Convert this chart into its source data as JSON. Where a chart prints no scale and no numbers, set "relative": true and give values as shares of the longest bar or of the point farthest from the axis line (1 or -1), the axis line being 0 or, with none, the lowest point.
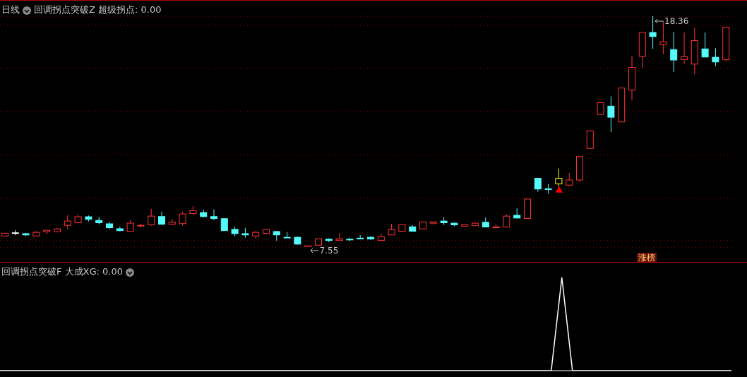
{
  "chart_data": [
    {
      "type": "candlestick",
      "title": "日线",
      "subtitle": "回调拐点突破Z 超级拐点: 0.00",
      "categories": [
        null,
        null,
        null,
        null,
        null,
        null,
        null,
        null,
        null,
        null,
        null,
        null,
        null,
        null,
        null,
        null,
        null,
        null,
        null,
        null,
        null,
        null,
        null,
        null,
        null,
        null,
        null,
        null,
        null,
        null,
        null,
        null,
        null,
        null,
        null,
        null,
        null,
        null,
        null,
        null,
        null,
        null,
        null,
        null,
        null,
        null,
        null,
        null,
        null,
        null,
        null,
        null,
        null,
        null,
        null,
        null,
        null,
        null,
        null,
        null,
        null,
        null,
        null,
        null,
        null,
        null,
        null,
        null,
        null,
        null
      ],
      "ohlc": [
        [
          8.07,
          8.2,
          8.07,
          8.2
        ],
        [
          8.22,
          8.34,
          8.11,
          8.22
        ],
        [
          8.18,
          8.21,
          8.06,
          8.12
        ],
        [
          8.07,
          8.3,
          8.07,
          8.24
        ],
        [
          8.27,
          8.34,
          8.16,
          8.34
        ],
        [
          8.27,
          8.45,
          8.27,
          8.4
        ],
        [
          8.57,
          9.04,
          8.39,
          8.77
        ],
        [
          8.69,
          9.07,
          8.65,
          8.97
        ],
        [
          8.97,
          9.03,
          8.75,
          8.85
        ],
        [
          8.8,
          8.97,
          8.62,
          8.69
        ],
        [
          8.64,
          8.73,
          8.39,
          8.46
        ],
        [
          8.41,
          8.5,
          8.29,
          8.32
        ],
        [
          8.29,
          8.81,
          8.29,
          8.67
        ],
        [
          8.56,
          8.64,
          8.46,
          8.57
        ],
        [
          8.59,
          9.34,
          8.55,
          9.0
        ],
        [
          8.98,
          9.21,
          8.59,
          8.62
        ],
        [
          8.62,
          8.87,
          8.62,
          8.71
        ],
        [
          8.65,
          9.21,
          8.55,
          9.1
        ],
        [
          9.12,
          9.47,
          9.05,
          9.26
        ],
        [
          9.17,
          9.31,
          8.95,
          8.98
        ],
        [
          8.98,
          9.31,
          8.81,
          8.89
        ],
        [
          8.88,
          8.91,
          8.32,
          8.32
        ],
        [
          8.38,
          8.51,
          8.05,
          8.18
        ],
        [
          8.18,
          8.45,
          7.99,
          8.12
        ],
        [
          8.07,
          8.31,
          7.94,
          8.24
        ],
        [
          8.19,
          8.37,
          8.15,
          8.37
        ],
        [
          8.28,
          8.31,
          7.85,
          8.12
        ],
        [
          8.01,
          8.25,
          8.0,
          8.0
        ],
        [
          8.01,
          8.05,
          7.66,
          7.69
        ],
        [
          7.55,
          7.61,
          7.55,
          7.61
        ],
        [
          7.64,
          7.94,
          7.64,
          7.94
        ],
        [
          7.92,
          7.96,
          7.78,
          7.86
        ],
        [
          7.87,
          8.21,
          7.87,
          7.94
        ],
        [
          7.92,
          7.99,
          7.83,
          7.91
        ],
        [
          7.97,
          8.11,
          7.96,
          7.96
        ],
        [
          8.01,
          8.05,
          7.88,
          7.93
        ],
        [
          7.86,
          8.18,
          7.86,
          8.04
        ],
        [
          8.12,
          8.64,
          8.12,
          8.37
        ],
        [
          8.29,
          8.6,
          8.26,
          8.6
        ],
        [
          8.5,
          8.57,
          8.29,
          8.29
        ],
        [
          8.4,
          8.73,
          8.4,
          8.73
        ],
        [
          8.67,
          8.73,
          8.6,
          8.73
        ],
        [
          8.77,
          8.94,
          8.59,
          8.69
        ],
        [
          8.67,
          8.71,
          8.52,
          8.59
        ],
        [
          8.53,
          8.6,
          8.53,
          8.6
        ],
        [
          8.55,
          8.7,
          8.55,
          8.67
        ],
        [
          8.71,
          8.94,
          8.49,
          8.49
        ],
        [
          8.46,
          8.61,
          8.46,
          8.5
        ],
        [
          8.49,
          9.08,
          8.49,
          9.0
        ],
        [
          9.04,
          9.37,
          8.91,
          8.91
        ],
        [
          8.89,
          9.8,
          8.89,
          9.8
        ],
        [
          10.77,
          10.77,
          10.14,
          10.27
        ],
        [
          10.28,
          10.5,
          10.05,
          10.27
        ],
        [
          10.51,
          11.23,
          10.4,
          10.77
        ],
        [
          10.45,
          11.03,
          10.41,
          10.69
        ],
        [
          10.69,
          11.79,
          10.61,
          11.79
        ],
        [
          12.17,
          12.99,
          12.17,
          12.99
        ],
        [
          13.76,
          14.31,
          13.76,
          14.31
        ],
        [
          14.15,
          14.61,
          12.93,
          13.63
        ],
        [
          13.41,
          15.0,
          13.41,
          15.0
        ],
        [
          14.9,
          16.5,
          14.42,
          15.96
        ],
        [
          16.48,
          17.6,
          15.95,
          17.6
        ],
        [
          17.6,
          18.36,
          16.84,
          17.41
        ],
        [
          17.04,
          18.16,
          16.58,
          17.16
        ],
        [
          16.8,
          17.63,
          15.75,
          16.31
        ],
        [
          16.33,
          17.6,
          16.12,
          16.46
        ],
        [
          16.12,
          17.83,
          15.64,
          17.22
        ],
        [
          16.83,
          17.6,
          16.45,
          16.45
        ],
        [
          16.44,
          16.86,
          16.02,
          16.22
        ],
        [
          16.33,
          17.85,
          16.25,
          17.85
        ]
      ],
      "colors": [
        "#ff3232",
        "#ffffff",
        "#54fcfc",
        "#ff3232",
        "#ff3232",
        "#ff3232",
        "#ff3232",
        "#ff3232",
        "#54fcfc",
        "#54fcfc",
        "#54fcfc",
        "#54fcfc",
        "#ff3232",
        "#ff3232",
        "#ff3232",
        "#54fcfc",
        "#ff3232",
        "#ff3232",
        "#ff3232",
        "#54fcfc",
        "#54fcfc",
        "#54fcfc",
        "#54fcfc",
        "#54fcfc",
        "#ff3232",
        "#ff3232",
        "#54fcfc",
        "#54fcfc",
        "#54fcfc",
        "#ff3232",
        "#ff3232",
        "#54fcfc",
        "#ff3232",
        "#54fcfc",
        "#54fcfc",
        "#54fcfc",
        "#ff3232",
        "#ff3232",
        "#ff3232",
        "#54fcfc",
        "#ff3232",
        "#ff3232",
        "#54fcfc",
        "#54fcfc",
        "#ff3232",
        "#ff3232",
        "#54fcfc",
        "#ff3232",
        "#ff3232",
        "#54fcfc",
        "#ff3232",
        "#54fcfc",
        "#54fcfc",
        "#ffff00",
        "#ff3232",
        "#ff3232",
        "#ff3232",
        "#ff3232",
        "#54fcfc",
        "#ff3232",
        "#ff3232",
        "#ff3232",
        "#54fcfc",
        "#ff3232",
        "#54fcfc",
        "#ff3232",
        "#ff3232",
        "#54fcfc",
        "#54fcfc",
        "#ff3232"
      ],
      "series": [
        {
          "type": "scatter",
          "color": "#ff0000",
          "marker": "triangle",
          "values": [
            null,
            null,
            null,
            null,
            null,
            null,
            null,
            null,
            null,
            null,
            null,
            null,
            null,
            null,
            null,
            null,
            null,
            null,
            null,
            null,
            null,
            null,
            null,
            null,
            null,
            null,
            null,
            null,
            null,
            null,
            null,
            null,
            null,
            null,
            null,
            null,
            null,
            null,
            null,
            null,
            null,
            null,
            null,
            null,
            null,
            null,
            null,
            null,
            null,
            null,
            null,
            null,
            null,
            10.24,
            null,
            null,
            null,
            null,
            null,
            null,
            null,
            null,
            null,
            null,
            null,
            null,
            null,
            null,
            null,
            null
          ]
        }
      ],
      "annotations": [
        "18.36",
        "7.55",
        "涨榜"
      ],
      "yticks": [
        {
          "value": 7.85,
          "label": null
        },
        {
          "value": 9.84,
          "label": null
        },
        {
          "value": 11.87,
          "label": null
        },
        {
          "value": 13.89,
          "label": null
        },
        {
          "value": 15.91,
          "label": null
        },
        {
          "value": 17.93,
          "label": null
        }
      ],
      "grid": "y"
    },
    {
      "type": "line",
      "title": "回调拐点突破F 大成XG: 0.00",
      "relative": true,
      "categories": [
        null,
        null,
        null,
        null,
        null,
        null,
        null,
        null,
        null,
        null,
        null,
        null,
        null,
        null,
        null,
        null,
        null,
        null,
        null,
        null,
        null,
        null,
        null,
        null,
        null,
        null,
        null,
        null,
        null,
        null,
        null,
        null,
        null,
        null,
        null,
        null,
        null,
        null,
        null,
        null,
        null,
        null,
        null,
        null,
        null,
        null,
        null,
        null,
        null,
        null,
        null,
        null,
        null,
        null,
        null,
        null,
        null,
        null,
        null,
        null,
        null,
        null,
        null,
        null,
        null,
        null,
        null,
        null,
        null,
        null
      ],
      "series": [
        {
          "color": "#ffffff",
          "values": [
            0,
            0,
            0,
            0,
            0,
            0,
            0,
            0,
            0,
            0,
            0,
            0,
            0,
            0,
            0,
            0,
            0,
            0,
            0,
            0,
            0,
            0,
            0,
            0,
            0,
            0,
            0,
            0,
            0,
            0,
            0,
            0,
            0,
            0,
            0,
            0,
            0,
            0,
            0,
            0,
            0,
            0,
            0,
            0,
            0,
            0,
            0,
            0,
            0,
            0,
            0,
            0,
            0,
            1,
            0,
            0,
            0,
            0,
            0,
            0,
            0,
            0,
            0,
            0,
            0,
            0,
            0,
            0,
            0,
            0
          ]
        }
      ]
    }
  ]
}
